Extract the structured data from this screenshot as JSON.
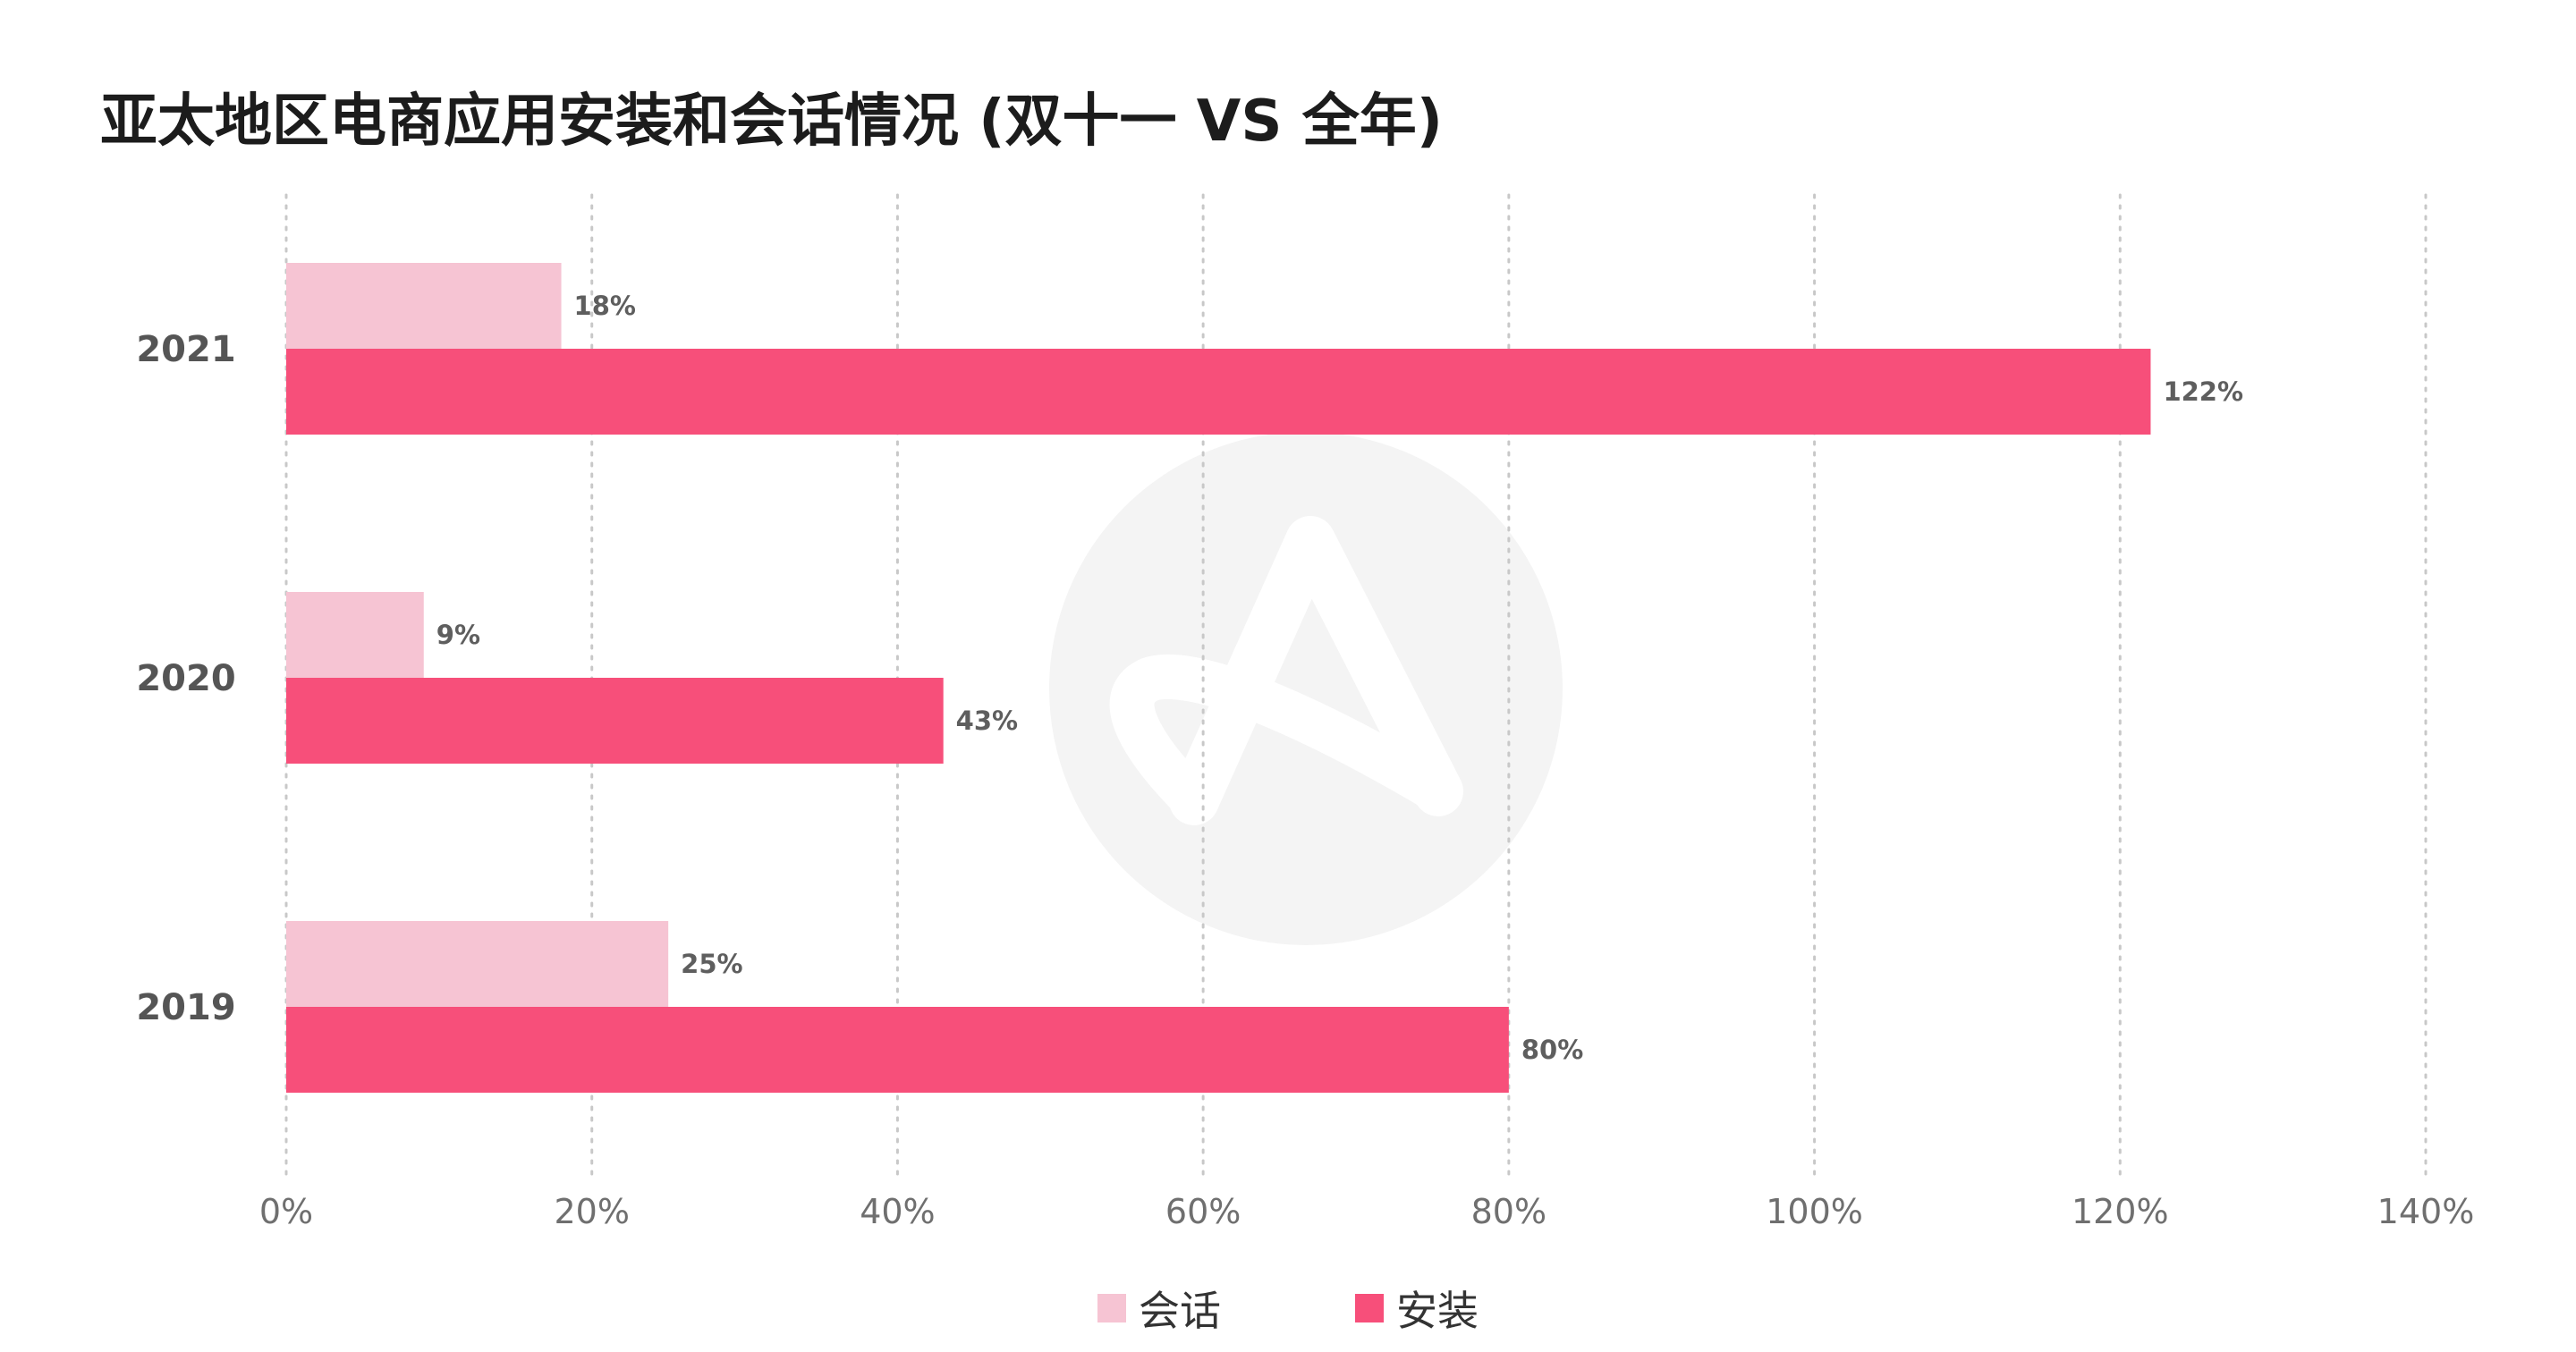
{
  "chart_data": {
    "type": "bar",
    "orientation": "horizontal",
    "title": "亚太地区电商应用安装和会话情况 (双十一 VS 全年)",
    "categories": [
      "2021",
      "2020",
      "2019"
    ],
    "series": [
      {
        "name": "会话",
        "values": [
          18,
          9,
          25
        ],
        "color": "#f6c4d3"
      },
      {
        "name": "安装",
        "values": [
          122,
          43,
          80
        ],
        "color": "#f74f7a"
      }
    ],
    "value_suffix": "%",
    "xlim": [
      0,
      140
    ],
    "xticks": [
      "0%",
      "20%",
      "40%",
      "60%",
      "80%",
      "100%",
      "120%",
      "140%"
    ],
    "xlabel": "",
    "ylabel": "",
    "grid": "vertical dotted",
    "legend_position": "bottom-center"
  },
  "watermark": {
    "icon": "adjust-logo-icon",
    "color": "#f4f4f4"
  }
}
